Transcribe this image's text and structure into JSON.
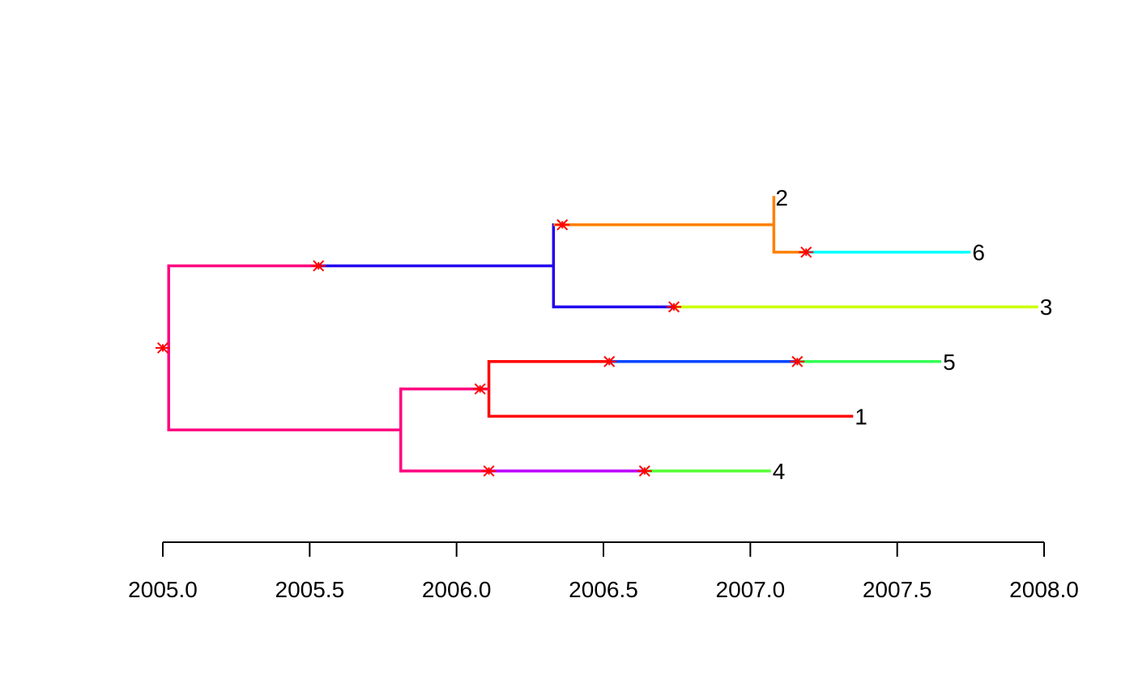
{
  "chart_data": {
    "type": "tree",
    "title": "",
    "xlabel": "",
    "ylabel": "",
    "xlim": [
      2005.0,
      2008.0
    ],
    "x_ticks": [
      2005.0,
      2005.5,
      2006.0,
      2006.5,
      2007.0,
      2007.5,
      2008.0
    ],
    "x_tick_labels": [
      "2005.0",
      "2005.5",
      "2006.0",
      "2006.5",
      "2007.0",
      "2007.5",
      "2008.0"
    ],
    "tip_order_top_to_bottom": [
      "2",
      "6",
      "3",
      "5",
      "1",
      "4"
    ],
    "tips": [
      {
        "label": "2",
        "time": 2007.08
      },
      {
        "label": "6",
        "time": 2007.75
      },
      {
        "label": "3",
        "time": 2007.98
      },
      {
        "label": "5",
        "time": 2007.65
      },
      {
        "label": "1",
        "time": 2007.35
      },
      {
        "label": "4",
        "time": 2007.07
      }
    ],
    "root": {
      "time": 2005.0,
      "color": "#FF0080"
    },
    "internal_nodes": [
      {
        "id": "n_root_split",
        "time": 2005.02
      },
      {
        "id": "n_A",
        "time": 2006.33
      },
      {
        "id": "n_A1",
        "time": 2007.08
      },
      {
        "id": "n_B",
        "time": 2005.81
      },
      {
        "id": "n_B1",
        "time": 2006.11
      }
    ],
    "branches": [
      {
        "from": "n_root_split",
        "to": "n_A",
        "segments": [
          {
            "start": 2005.02,
            "end": 2005.53,
            "color": "#FF0080"
          },
          {
            "start": 2005.53,
            "end": 2006.33,
            "color": "#2200EE"
          }
        ]
      },
      {
        "from": "n_A",
        "to": "n_A1",
        "segments": [
          {
            "start": 2006.33,
            "end": 2007.08,
            "color": "#FF8000"
          }
        ]
      },
      {
        "from": "n_A1",
        "to": "2",
        "segments": [
          {
            "start": 2007.08,
            "end": 2007.08,
            "color": "#FF8000"
          }
        ]
      },
      {
        "from": "n_A1",
        "to": "6",
        "segments": [
          {
            "start": 2007.08,
            "end": 2007.19,
            "color": "#FF8000"
          },
          {
            "start": 2007.19,
            "end": 2007.75,
            "color": "#00FFFF"
          }
        ]
      },
      {
        "from": "n_A",
        "to": "3",
        "segments": [
          {
            "start": 2006.33,
            "end": 2006.74,
            "color": "#2200EE"
          },
          {
            "start": 2006.74,
            "end": 2007.98,
            "color": "#CCFF00"
          }
        ]
      },
      {
        "from": "n_root_split",
        "to": "n_B",
        "segments": [
          {
            "start": 2005.02,
            "end": 2005.81,
            "color": "#FF0080"
          }
        ]
      },
      {
        "from": "n_B",
        "to": "n_B1",
        "segments": [
          {
            "start": 2005.81,
            "end": 2006.11,
            "color": "#FF0080"
          }
        ]
      },
      {
        "from": "n_B1",
        "to": "5",
        "segments": [
          {
            "start": 2006.11,
            "end": 2006.52,
            "color": "#FF0000"
          },
          {
            "start": 2006.52,
            "end": 2007.16,
            "color": "#0044FF"
          },
          {
            "start": 2007.16,
            "end": 2007.65,
            "color": "#33FF55"
          }
        ]
      },
      {
        "from": "n_B1",
        "to": "1",
        "segments": [
          {
            "start": 2006.11,
            "end": 2007.35,
            "color": "#FF0000"
          }
        ]
      },
      {
        "from": "n_B",
        "to": "4",
        "segments": [
          {
            "start": 2005.81,
            "end": 2006.11,
            "color": "#FF0080"
          },
          {
            "start": 2006.11,
            "end": 2006.64,
            "color": "#BB00FF"
          },
          {
            "start": 2006.64,
            "end": 2007.07,
            "color": "#55FF33"
          }
        ]
      }
    ],
    "vertical_connectors": [
      {
        "node": "n_root_split",
        "color": "#FF0080"
      },
      {
        "node": "n_A",
        "color": "#2200EE"
      },
      {
        "node": "n_A1",
        "color": "#FF8000"
      },
      {
        "node": "n_B",
        "color": "#FF0080"
      },
      {
        "node": "n_B1",
        "color": "#FF0000"
      }
    ],
    "events": [
      {
        "time": 2005.0,
        "on": "root"
      },
      {
        "time": 2005.53,
        "on": "n_root_split->n_A"
      },
      {
        "time": 2006.36,
        "on": "n_A->n_A1"
      },
      {
        "time": 2007.19,
        "on": "n_A1->6"
      },
      {
        "time": 2006.74,
        "on": "n_A->3"
      },
      {
        "time": 2006.08,
        "on": "n_B->n_B1"
      },
      {
        "time": 2006.52,
        "on": "n_B1->5"
      },
      {
        "time": 2007.16,
        "on": "n_B1->5"
      },
      {
        "time": 2006.11,
        "on": "n_B->4"
      },
      {
        "time": 2006.64,
        "on": "n_B->4"
      }
    ],
    "event_marker": {
      "symbol": "asterisk",
      "color": "#FF0000"
    },
    "tick_color": "#000000",
    "grid": false,
    "legend": "none"
  }
}
